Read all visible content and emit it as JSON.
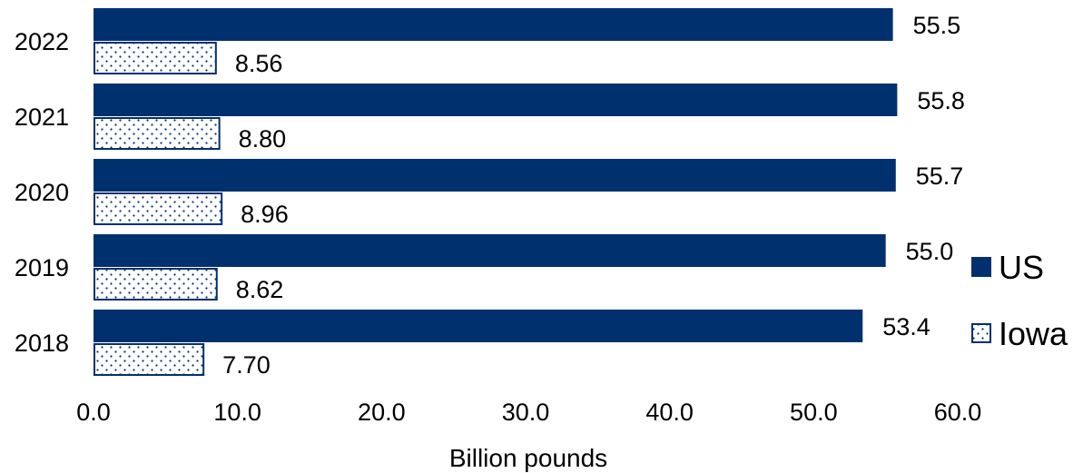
{
  "chart_data": {
    "type": "bar",
    "orientation": "horizontal",
    "categories": [
      "2022",
      "2021",
      "2020",
      "2019",
      "2018"
    ],
    "series": [
      {
        "name": "US",
        "values": [
          55.5,
          55.8,
          55.7,
          55.0,
          53.4
        ],
        "labels": [
          "55.5",
          "55.8",
          "55.7",
          "55.0",
          "53.4"
        ],
        "color": "#00306E",
        "pattern": "solid"
      },
      {
        "name": "Iowa",
        "values": [
          8.56,
          8.8,
          8.96,
          8.62,
          7.7
        ],
        "labels": [
          "8.56",
          "8.80",
          "8.96",
          "8.62",
          "7.70"
        ],
        "color": "#00306E",
        "pattern": "dotted"
      }
    ],
    "xlabel": "Billion pounds",
    "xlim": [
      0,
      60
    ],
    "xticks": [
      "0.0",
      "10.0",
      "20.0",
      "30.0",
      "40.0",
      "50.0",
      "60.0"
    ],
    "grid": false,
    "legend_position": "right"
  }
}
